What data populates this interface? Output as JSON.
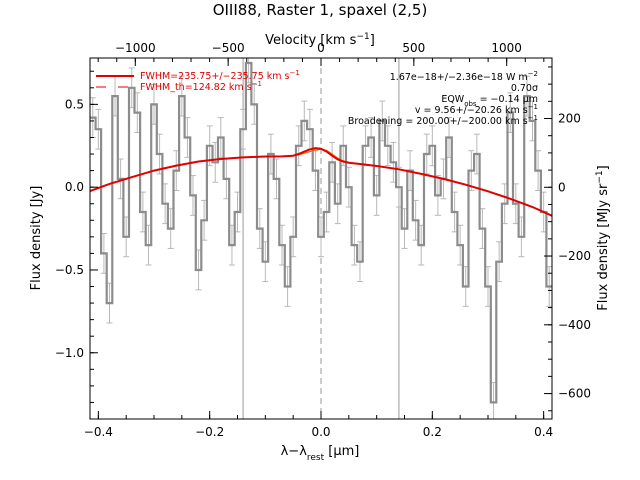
{
  "chart_data": {
    "type": "line",
    "title": "OIII88, Raster 1, spaxel (2,5)",
    "xlabel": "λ−λ",
    "xlabel_sub": "rest",
    "xlabel_unit": " [μm]",
    "ylabel": "Flux density [Jy]",
    "top_axis_label": "Velocity [km s",
    "top_axis_label_sup": "−1",
    "top_axis_label_end": "]",
    "right_axis_label": "Flux density [MJy sr",
    "right_axis_label_sup": "−1",
    "right_axis_label_end": "]",
    "xlim": [
      -0.415,
      0.415
    ],
    "ylim": [
      -1.4,
      0.78
    ],
    "top_xlim": [
      -1244,
      1244
    ],
    "right_ylim": [
      -674,
      376
    ],
    "x_ticks": [
      -0.4,
      -0.2,
      0.0,
      0.2,
      0.4
    ],
    "x_tick_labels": [
      "−0.4",
      "−0.2",
      "0.0",
      "0.2",
      "0.4"
    ],
    "y_ticks": [
      -1.0,
      -0.5,
      0.0,
      0.5
    ],
    "y_tick_labels": [
      "−1.0",
      "−0.5",
      "0.0",
      "0.5"
    ],
    "top_ticks": [
      -1000,
      -500,
      0,
      500,
      1000
    ],
    "top_tick_labels": [
      "−1000",
      "−500",
      "0",
      "500",
      "1000"
    ],
    "right_ticks": [
      -600,
      -400,
      -200,
      0,
      200
    ],
    "right_tick_labels": [
      "−600",
      "−400",
      "−200",
      "0",
      "200"
    ],
    "vlines_solid": [
      -0.14,
      0.14
    ],
    "vline_dashed": 0.0,
    "annotations": [
      "1.67e−18+/−2.36e−18 W m",
      "0.70σ",
      "EQW",
      "v = 9.56+/−20.26 km s",
      "Broadening = 200.00+/−200.00 km s"
    ],
    "annotation_parts": {
      "a1_sup": "−2",
      "a3_sub": "obs",
      "a3_tail": " = −0.14 μm",
      "a4_sup": "−1",
      "a5_sup": "−1"
    },
    "legend": [
      {
        "label": "FWHM=235.75+/−235.75 km s",
        "sup": "−1",
        "style": "solid"
      },
      {
        "label": "FWHM_th=124.82 km s",
        "sup": "−1",
        "style": "dashed"
      }
    ],
    "data_series": {
      "name": "spectrum",
      "x": [
        -0.41,
        -0.4,
        -0.39,
        -0.38,
        -0.37,
        -0.36,
        -0.35,
        -0.34,
        -0.33,
        -0.32,
        -0.31,
        -0.3,
        -0.29,
        -0.28,
        -0.27,
        -0.26,
        -0.25,
        -0.24,
        -0.23,
        -0.22,
        -0.21,
        -0.2,
        -0.19,
        -0.18,
        -0.17,
        -0.16,
        -0.15,
        -0.14,
        -0.13,
        -0.12,
        -0.11,
        -0.1,
        -0.09,
        -0.08,
        -0.07,
        -0.06,
        -0.05,
        -0.04,
        -0.03,
        -0.02,
        -0.01,
        0.0,
        0.01,
        0.02,
        0.03,
        0.04,
        0.05,
        0.06,
        0.07,
        0.08,
        0.09,
        0.1,
        0.11,
        0.12,
        0.13,
        0.14,
        0.15,
        0.16,
        0.17,
        0.18,
        0.19,
        0.2,
        0.21,
        0.22,
        0.23,
        0.24,
        0.25,
        0.26,
        0.27,
        0.28,
        0.29,
        0.3,
        0.31,
        0.32,
        0.33,
        0.34,
        0.35,
        0.36,
        0.37,
        0.38,
        0.39,
        0.4,
        0.41
      ],
      "y": [
        0.42,
        0.35,
        -0.4,
        -0.7,
        0.55,
        0.05,
        -0.3,
        0.6,
        0.45,
        -0.15,
        -0.35,
        0.5,
        0.2,
        -0.1,
        -0.25,
        0.1,
        0.55,
        0.3,
        -0.05,
        -0.5,
        -0.2,
        0.25,
        0.15,
        0.3,
        0.05,
        -0.35,
        -0.15,
        0.35,
        0.75,
        0.5,
        -0.25,
        -0.45,
        0.2,
        0.05,
        -0.35,
        -0.6,
        -0.3,
        0.25,
        0.4,
        0.35,
        0.1,
        -0.3,
        -0.15,
        0.15,
        -0.1,
        0.25,
        0.0,
        -0.35,
        -0.45,
        0.25,
        0.3,
        -0.05,
        0.4,
        0.25,
        0.15,
        0.0,
        -0.25,
        0.1,
        -0.2,
        -0.35,
        0.2,
        0.25,
        -0.05,
        0.05,
        0.3,
        -0.15,
        -0.35,
        -0.6,
        0.1,
        0.2,
        -0.25,
        -0.6,
        -1.3,
        -0.45,
        -0.1,
        0.45,
        -0.1,
        -0.3,
        0.55,
        0.4,
        0.1,
        -0.15,
        -0.6
      ],
      "err": 0.12
    },
    "model_series": {
      "name": "model",
      "x": [
        -0.42,
        -0.38,
        -0.34,
        -0.3,
        -0.26,
        -0.22,
        -0.18,
        -0.14,
        -0.1,
        -0.07,
        -0.05,
        -0.04,
        -0.03,
        -0.02,
        -0.01,
        0.0,
        0.01,
        0.02,
        0.03,
        0.04,
        0.05,
        0.07,
        0.1,
        0.14,
        0.18,
        0.22,
        0.26,
        0.3,
        0.34,
        0.38,
        0.42
      ],
      "y": [
        -0.03,
        0.02,
        0.06,
        0.1,
        0.13,
        0.155,
        0.17,
        0.18,
        0.185,
        0.186,
        0.19,
        0.2,
        0.215,
        0.228,
        0.236,
        0.232,
        0.215,
        0.19,
        0.168,
        0.155,
        0.148,
        0.14,
        0.128,
        0.108,
        0.08,
        0.05,
        0.015,
        -0.025,
        -0.07,
        -0.12,
        -0.18
      ]
    },
    "component_series": {
      "name": "component",
      "x": [
        -0.06,
        -0.05,
        -0.04,
        -0.03,
        -0.02,
        -0.01,
        0.0,
        0.01,
        0.02,
        0.03,
        0.04,
        0.05
      ],
      "y": [
        0.186,
        0.19,
        0.195,
        0.205,
        0.215,
        0.225,
        0.23,
        0.222,
        0.2,
        0.175,
        0.158,
        0.15
      ]
    },
    "colors": {
      "data": "#8c8c8c",
      "error": "#b8b8b8",
      "model": "#e00000",
      "component": "#ff5a00",
      "vline": "#9a9a9a",
      "axis": "#000000"
    }
  }
}
